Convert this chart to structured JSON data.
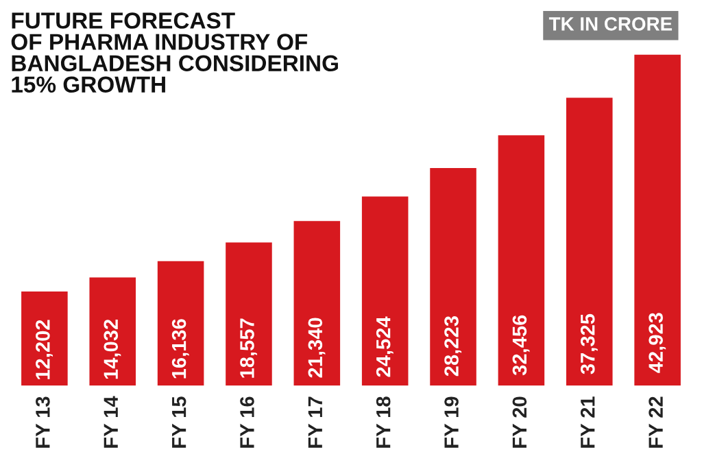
{
  "chart_data": {
    "type": "bar",
    "title": "FUTURE FORECAST\nOF PHARMA INDUSTRY OF\nBANGLADESH CONSIDERING\n15% GROWTH",
    "subtitle": "TK IN CRORE",
    "categories": [
      "FY 13",
      "FY 14",
      "FY 15",
      "FY 16",
      "FY 17",
      "FY 18",
      "FY 19",
      "FY 20",
      "FY 21",
      "FY 22"
    ],
    "values": [
      12202,
      14032,
      16136,
      18557,
      21340,
      24524,
      28223,
      32456,
      37325,
      42923
    ],
    "value_labels": [
      "12,202",
      "14,032",
      "16,136",
      "18,557",
      "21,340",
      "24,524",
      "28,223",
      "32,456",
      "37,325",
      "42,923"
    ],
    "color": "#d7191f"
  }
}
